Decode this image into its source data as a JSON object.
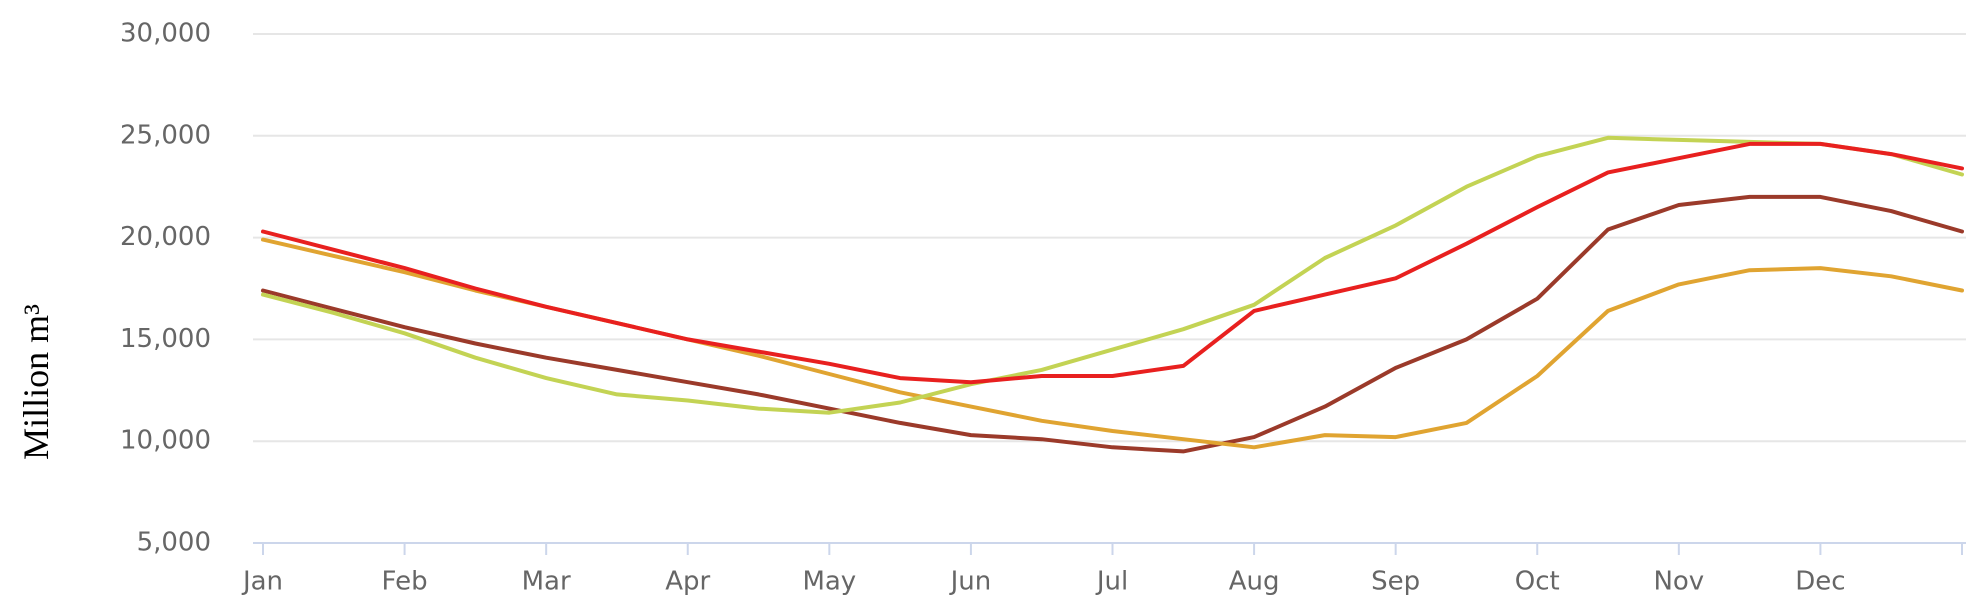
{
  "chart_data": {
    "type": "line",
    "y_label": "Million m³",
    "categories": [
      "Jan",
      null,
      "Feb",
      null,
      "Mar",
      null,
      "Apr",
      null,
      "May",
      null,
      "Jun",
      null,
      "Jul",
      null,
      "Aug",
      null,
      "Sep",
      null,
      "Oct",
      null,
      "Nov",
      null,
      "Dec",
      null,
      null
    ],
    "ylim": [
      5000,
      30000
    ],
    "yticks": [
      {
        "value": 5000,
        "label": "5,000"
      },
      {
        "value": 10000,
        "label": "10,000"
      },
      {
        "value": 15000,
        "label": "15,000"
      },
      {
        "value": 20000,
        "label": "20,000"
      },
      {
        "value": 25000,
        "label": "25,000"
      },
      {
        "value": 30000,
        "label": "30,000"
      }
    ],
    "grid": true,
    "series": [
      {
        "color": "#9b3a2a",
        "values": [
          17400,
          16500,
          15600,
          14800,
          14100,
          13500,
          12900,
          12300,
          11600,
          10900,
          10300,
          10100,
          9700,
          9500,
          10200,
          11700,
          13600,
          15000,
          17000,
          20400,
          21600,
          22000,
          22000,
          21300,
          20300
        ]
      },
      {
        "color": "#e0a431",
        "values": [
          19900,
          19100,
          18300,
          17400,
          16600,
          15800,
          15000,
          14200,
          13300,
          12400,
          11700,
          11000,
          10500,
          10100,
          9700,
          10300,
          10200,
          10900,
          13200,
          16400,
          17700,
          18400,
          18500,
          18100,
          17400
        ]
      },
      {
        "color": "#c3d354",
        "values": [
          17200,
          16300,
          15300,
          14100,
          13100,
          12300,
          12000,
          11600,
          11400,
          11900,
          12800,
          13500,
          14500,
          15500,
          16700,
          19000,
          20600,
          22500,
          24000,
          24900,
          24800,
          24700,
          24600,
          24100,
          23100
        ]
      },
      {
        "color": "#e8201f",
        "values": [
          20300,
          19400,
          18500,
          17500,
          16600,
          15800,
          15000,
          14400,
          13800,
          13100,
          12900,
          13200,
          13200,
          13700,
          16400,
          17200,
          18000,
          19700,
          21500,
          23200,
          23900,
          24600,
          24600,
          24100,
          23400
        ]
      }
    ]
  }
}
